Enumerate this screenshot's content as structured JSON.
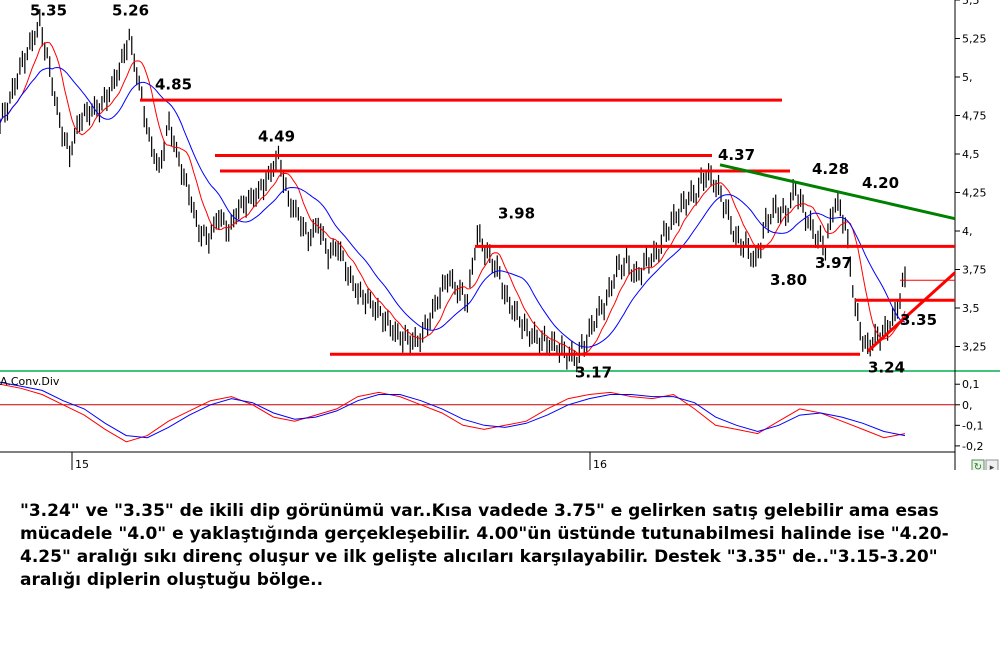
{
  "chart_data": [
    {
      "type": "line",
      "series": [
        {
          "values": [
            4.7,
            4.85,
            5.05,
            5.2,
            5.35,
            5.05,
            4.7,
            4.5,
            4.72,
            4.78,
            4.8,
            4.9,
            5.05,
            5.26,
            4.95,
            4.6,
            4.4,
            4.7,
            4.45,
            4.25,
            4.0,
            3.95,
            4.1,
            4.0,
            4.15,
            4.2,
            4.25,
            4.35,
            4.49,
            4.2,
            4.1,
            3.95,
            4.05,
            3.85,
            3.9,
            3.72,
            3.6,
            3.55,
            3.48,
            3.4,
            3.32,
            3.3,
            3.28,
            3.4,
            3.55,
            3.7,
            3.62,
            3.55,
            3.98,
            3.85,
            3.75,
            3.55,
            3.45,
            3.35,
            3.3,
            3.28,
            3.25,
            3.2,
            3.17,
            3.3,
            3.45,
            3.55,
            3.75,
            3.8,
            3.7,
            3.8,
            3.85,
            4.0,
            4.1,
            4.2,
            4.25,
            4.37,
            4.3,
            4.15,
            3.95,
            3.9,
            3.8,
            4.05,
            4.15,
            4.1,
            4.28,
            4.1,
            3.97,
            3.9,
            4.2,
            4.05,
            3.5,
            3.24,
            3.3,
            3.35,
            3.45,
            3.7
          ],
          "ylim": [
            3.1,
            5.5
          ]
        }
      ],
      "yticks": [
        "5,5",
        "5,25",
        "5,",
        "4,75",
        "4,5",
        "4,25",
        "4,",
        "3,75",
        "3,5",
        "3,25"
      ],
      "xticks": [
        "15",
        "16"
      ],
      "annotations": [
        "5.35",
        "5.26",
        "4.85",
        "4.49",
        "3.98",
        "3.17",
        "4.37",
        "4.28",
        "4.20",
        "3.80",
        "3.97",
        "3.35",
        "3.24"
      ],
      "levels": [
        4.85,
        4.49,
        4.39,
        3.9,
        3.55,
        3.2
      ],
      "colors": {
        "price": "#000000",
        "ma_fast": "#ff0000",
        "ma_slow": "#0000ff",
        "support": "#ff0000",
        "trend": "#008000"
      }
    },
    {
      "type": "line",
      "title": "A.Conv.Div",
      "series": [
        {
          "values": [
            0.1,
            0.08,
            0.05,
            0.0,
            -0.05,
            -0.12,
            -0.18,
            -0.15,
            -0.08,
            -0.03,
            0.02,
            0.04,
            0.0,
            -0.06,
            -0.08,
            -0.05,
            -0.02,
            0.04,
            0.06,
            0.04,
            0.0,
            -0.04,
            -0.1,
            -0.12,
            -0.1,
            -0.08,
            -0.02,
            0.03,
            0.05,
            0.06,
            0.04,
            0.03,
            0.05,
            -0.02,
            -0.1,
            -0.12,
            -0.14,
            -0.08,
            -0.02,
            -0.04,
            -0.08,
            -0.12,
            -0.16,
            -0.14
          ]
        },
        {
          "values": [
            0.11,
            0.09,
            0.07,
            0.02,
            -0.02,
            -0.09,
            -0.15,
            -0.16,
            -0.11,
            -0.05,
            0.0,
            0.03,
            0.01,
            -0.04,
            -0.07,
            -0.06,
            -0.03,
            0.02,
            0.05,
            0.05,
            0.02,
            -0.02,
            -0.07,
            -0.1,
            -0.11,
            -0.09,
            -0.05,
            0.0,
            0.03,
            0.05,
            0.05,
            0.04,
            0.04,
            0.01,
            -0.06,
            -0.1,
            -0.13,
            -0.1,
            -0.05,
            -0.04,
            -0.06,
            -0.09,
            -0.13,
            -0.15
          ]
        }
      ],
      "ylim": [
        -0.22,
        0.14
      ],
      "yticks": [
        "0,1",
        "0,",
        "-0,1",
        "-0,2"
      ]
    }
  ],
  "caption": "\"3.24\" ve \"3.35\" de ikili dip görünümü var..Kısa vadede 3.75\" e gelirken satış gelebilir ama esas mücadele \"4.0\" e yaklaştığında gerçekleşebilir. 4.00\"ün üstünde tutunabilmesi halinde ise \"4.20-4.25\" aralığı sıkı direnç oluşur ve ilk gelişte alıcıları karşılayabilir. Destek \"3.35\" de..\"3.15-3.20\" aralığı diplerin oluştuğu bölge.."
}
